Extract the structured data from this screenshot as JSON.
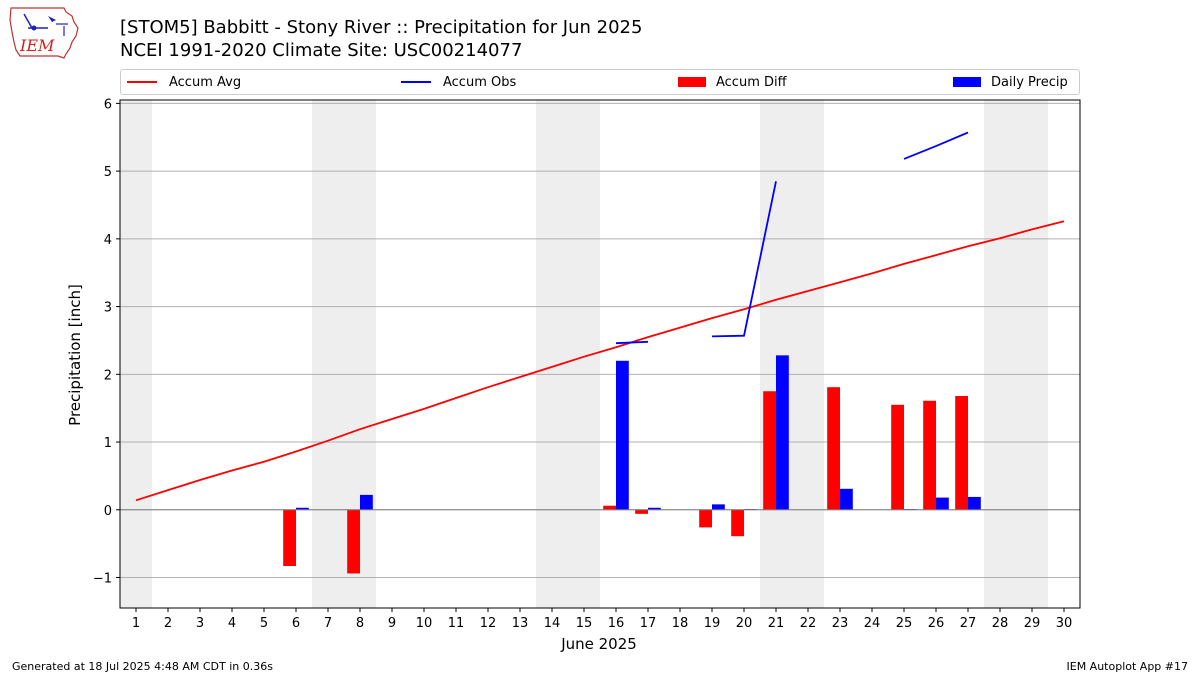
{
  "header": {
    "title_line1": "[STOM5] Babbitt - Stony River :: Precipitation for Jun 2025",
    "title_line2": "NCEI 1991-2020 Climate Site: USC00214077",
    "logo_text": "IEM"
  },
  "footer": {
    "generated": "Generated at 18 Jul 2025 4:48 AM CDT in 0.36s",
    "app": "IEM Autoplot App #17"
  },
  "legend": [
    {
      "label": "Accum Avg",
      "type": "line",
      "color": "#ff0000"
    },
    {
      "label": "Accum Obs",
      "type": "line",
      "color": "#0000ff"
    },
    {
      "label": "Accum Diff",
      "type": "bar",
      "color": "#ff0000"
    },
    {
      "label": "Daily Precip",
      "type": "bar",
      "color": "#0000ff"
    }
  ],
  "chart_data": {
    "type": "bar",
    "xlabel": "June 2025",
    "ylabel": "Precipitation [inch]",
    "xlim": [
      0.5,
      30.5
    ],
    "ylim": [
      -1.45,
      6.05
    ],
    "yticks": [
      -1,
      0,
      1,
      2,
      3,
      4,
      5,
      6
    ],
    "ytick_labels": [
      "−1",
      "0",
      "1",
      "2",
      "3",
      "4",
      "5",
      "6"
    ],
    "x": [
      1,
      2,
      3,
      4,
      5,
      6,
      7,
      8,
      9,
      10,
      11,
      12,
      13,
      14,
      15,
      16,
      17,
      18,
      19,
      20,
      21,
      22,
      23,
      24,
      25,
      26,
      27,
      28,
      29,
      30
    ],
    "weekend_days": [
      1,
      7,
      8,
      14,
      15,
      21,
      22,
      28,
      29
    ],
    "grid": "horizontal",
    "legend_position": "top",
    "series": [
      {
        "name": "Accum Avg",
        "type": "line",
        "color": "#ff0000",
        "values": [
          0.14,
          0.29,
          0.44,
          0.58,
          0.71,
          0.86,
          1.02,
          1.19,
          1.34,
          1.49,
          1.65,
          1.81,
          1.96,
          2.11,
          2.26,
          2.4,
          2.55,
          2.69,
          2.83,
          2.96,
          3.1,
          3.23,
          3.36,
          3.49,
          3.63,
          3.76,
          3.89,
          4.01,
          4.14,
          4.26
        ]
      },
      {
        "name": "Accum Obs",
        "type": "line",
        "color": "#0000ff",
        "values": [
          null,
          null,
          null,
          null,
          null,
          null,
          null,
          null,
          null,
          null,
          null,
          null,
          null,
          null,
          null,
          2.46,
          2.48,
          null,
          2.56,
          2.57,
          4.85,
          null,
          null,
          null,
          5.18,
          5.37,
          5.57,
          null,
          null,
          null
        ]
      },
      {
        "name": "Accum Diff",
        "type": "bar",
        "color": "#ff0000",
        "values": [
          null,
          null,
          null,
          null,
          null,
          -0.83,
          null,
          -0.94,
          null,
          null,
          null,
          null,
          null,
          null,
          null,
          0.06,
          -0.06,
          null,
          -0.26,
          -0.39,
          1.75,
          null,
          1.81,
          null,
          1.55,
          1.61,
          1.68,
          null,
          null,
          null
        ]
      },
      {
        "name": "Daily Precip",
        "type": "bar",
        "color": "#0000ff",
        "values": [
          null,
          null,
          null,
          null,
          null,
          0.03,
          null,
          0.22,
          null,
          null,
          null,
          null,
          null,
          null,
          null,
          2.2,
          0.03,
          null,
          0.08,
          0.01,
          2.28,
          null,
          0.31,
          null,
          0.01,
          0.18,
          0.19,
          null,
          null,
          null
        ]
      }
    ]
  }
}
